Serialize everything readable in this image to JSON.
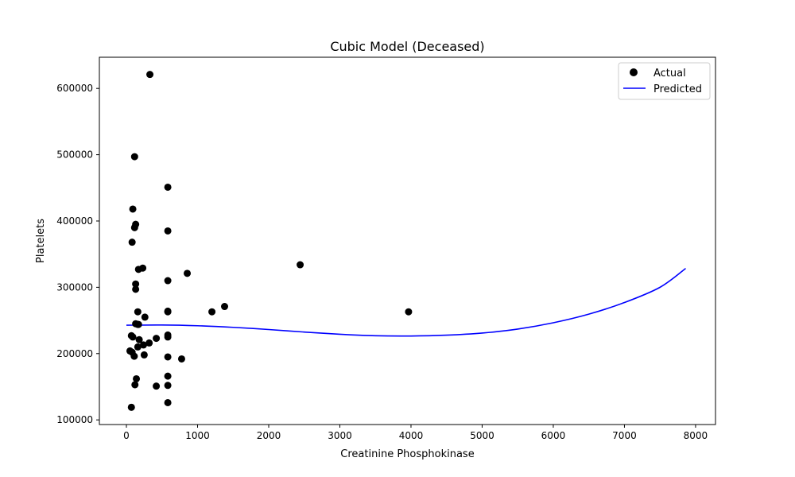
{
  "chart_data": {
    "type": "scatter",
    "title": "Cubic Model (Deceased)",
    "xlabel": "Creatinine Phosphokinase",
    "ylabel": "Platelets",
    "xlim": [
      -380,
      8280
    ],
    "ylim": [
      93000,
      647000
    ],
    "x_ticks": [
      0,
      1000,
      2000,
      3000,
      4000,
      5000,
      6000,
      7000,
      8000
    ],
    "y_ticks": [
      100000,
      200000,
      300000,
      400000,
      500000,
      600000
    ],
    "grid": false,
    "legend_position": "top-right",
    "legend": {
      "actual_label": "Actual",
      "predicted_label": "Predicted"
    },
    "colors": {
      "actual": "#000000",
      "predicted": "#0000ff"
    },
    "series": [
      {
        "name": "Actual",
        "kind": "scatter",
        "points": [
          [
            330,
            621000
          ],
          [
            115,
            497000
          ],
          [
            582,
            451000
          ],
          [
            90,
            418000
          ],
          [
            130,
            395000
          ],
          [
            115,
            390000
          ],
          [
            582,
            385000
          ],
          [
            80,
            368000
          ],
          [
            2442,
            334000
          ],
          [
            230,
            329000
          ],
          [
            170,
            327000
          ],
          [
            855,
            321000
          ],
          [
            582,
            310000
          ],
          [
            130,
            305000
          ],
          [
            130,
            297000
          ],
          [
            1380,
            271000
          ],
          [
            582,
            264000
          ],
          [
            582,
            263000
          ],
          [
            1202,
            263000
          ],
          [
            3966,
            263000
          ],
          [
            160,
            263000
          ],
          [
            260,
            255000
          ],
          [
            130,
            245000
          ],
          [
            170,
            244000
          ],
          [
            160,
            244000
          ],
          [
            70,
            227000
          ],
          [
            582,
            228000
          ],
          [
            90,
            225000
          ],
          [
            582,
            225000
          ],
          [
            420,
            223000
          ],
          [
            180,
            221000
          ],
          [
            320,
            216000
          ],
          [
            240,
            213000
          ],
          [
            160,
            210000
          ],
          [
            50,
            204000
          ],
          [
            80,
            202000
          ],
          [
            250,
            198000
          ],
          [
            110,
            196000
          ],
          [
            582,
            195000
          ],
          [
            776,
            192000
          ],
          [
            582,
            166000
          ],
          [
            140,
            162000
          ],
          [
            120,
            153000
          ],
          [
            420,
            151000
          ],
          [
            582,
            152000
          ],
          [
            582,
            126000
          ],
          [
            70,
            119000
          ]
        ]
      },
      {
        "name": "Predicted",
        "kind": "line",
        "points": [
          [
            0,
            242800
          ],
          [
            500,
            243100
          ],
          [
            1000,
            242000
          ],
          [
            1500,
            239600
          ],
          [
            2000,
            236300
          ],
          [
            2500,
            232500
          ],
          [
            3000,
            229200
          ],
          [
            3500,
            226900
          ],
          [
            4000,
            226500
          ],
          [
            4500,
            227800
          ],
          [
            5000,
            231000
          ],
          [
            5500,
            237000
          ],
          [
            6000,
            246500
          ],
          [
            6500,
            259500
          ],
          [
            7000,
            277000
          ],
          [
            7500,
            300000
          ],
          [
            7861,
            328500
          ]
        ]
      }
    ]
  }
}
